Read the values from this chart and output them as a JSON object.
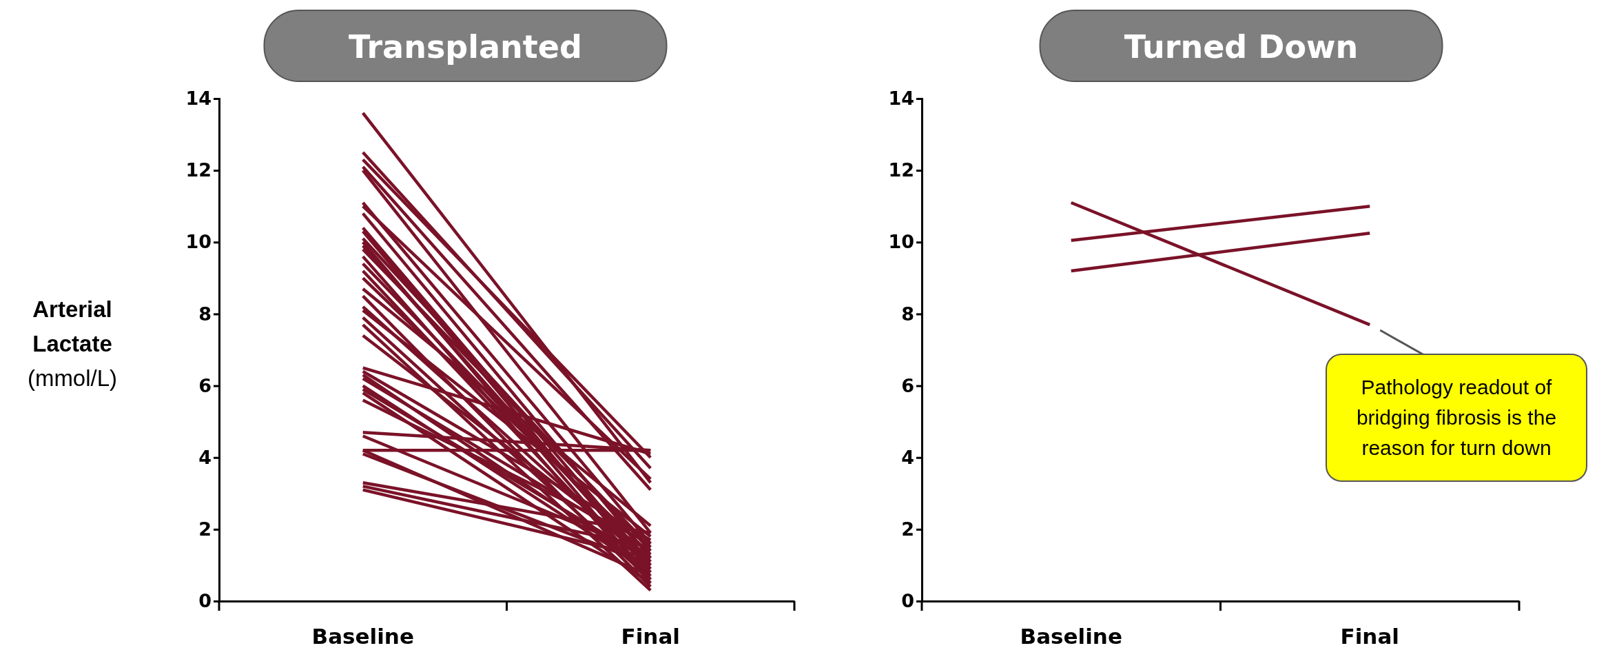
{
  "chart_data": [
    {
      "type": "line",
      "title": "Transplanted",
      "ylabel": "Arterial Lactate (mmol/L)",
      "categories": [
        "Baseline",
        "Final"
      ],
      "ylim": [
        0,
        14
      ],
      "yticks": [
        0,
        2,
        4,
        6,
        8,
        10,
        12,
        14
      ],
      "grid": false,
      "marker": "none",
      "series": [
        {
          "color": "#7a1228",
          "values": [
            13.6,
            3.3
          ]
        },
        {
          "color": "#7a1228",
          "values": [
            12.5,
            3.7
          ]
        },
        {
          "color": "#7a1228",
          "values": [
            12.3,
            4.0
          ]
        },
        {
          "color": "#7a1228",
          "values": [
            12.1,
            3.1
          ]
        },
        {
          "color": "#7a1228",
          "values": [
            12.0,
            1.9
          ]
        },
        {
          "color": "#7a1228",
          "values": [
            11.1,
            1.6
          ]
        },
        {
          "color": "#7a1228",
          "values": [
            11.0,
            3.4
          ]
        },
        {
          "color": "#7a1228",
          "values": [
            10.8,
            1.2
          ]
        },
        {
          "color": "#7a1228",
          "values": [
            10.4,
            1.0
          ]
        },
        {
          "color": "#7a1228",
          "values": [
            10.3,
            0.8
          ]
        },
        {
          "color": "#7a1228",
          "values": [
            10.1,
            1.4
          ]
        },
        {
          "color": "#7a1228",
          "values": [
            10.0,
            0.6
          ]
        },
        {
          "color": "#7a1228",
          "values": [
            9.9,
            0.9
          ]
        },
        {
          "color": "#7a1228",
          "values": [
            9.8,
            1.5
          ]
        },
        {
          "color": "#7a1228",
          "values": [
            9.6,
            0.5
          ]
        },
        {
          "color": "#7a1228",
          "values": [
            9.4,
            1.1
          ]
        },
        {
          "color": "#7a1228",
          "values": [
            9.2,
            0.7
          ]
        },
        {
          "color": "#7a1228",
          "values": [
            9.0,
            1.3
          ]
        },
        {
          "color": "#7a1228",
          "values": [
            8.7,
            2.1
          ]
        },
        {
          "color": "#7a1228",
          "values": [
            8.5,
            0.4
          ]
        },
        {
          "color": "#7a1228",
          "values": [
            8.2,
            1.0
          ]
        },
        {
          "color": "#7a1228",
          "values": [
            8.1,
            1.8
          ]
        },
        {
          "color": "#7a1228",
          "values": [
            7.9,
            0.6
          ]
        },
        {
          "color": "#7a1228",
          "values": [
            7.7,
            0.3
          ]
        },
        {
          "color": "#7a1228",
          "values": [
            7.4,
            1.2
          ]
        },
        {
          "color": "#7a1228",
          "values": [
            6.5,
            4.1
          ]
        },
        {
          "color": "#7a1228",
          "values": [
            6.4,
            1.7
          ]
        },
        {
          "color": "#7a1228",
          "values": [
            6.3,
            0.9
          ]
        },
        {
          "color": "#7a1228",
          "values": [
            6.2,
            1.4
          ]
        },
        {
          "color": "#7a1228",
          "values": [
            6.0,
            0.8
          ]
        },
        {
          "color": "#7a1228",
          "values": [
            5.9,
            1.1
          ]
        },
        {
          "color": "#7a1228",
          "values": [
            5.8,
            0.5
          ]
        },
        {
          "color": "#7a1228",
          "values": [
            5.6,
            1.6
          ]
        },
        {
          "color": "#7a1228",
          "values": [
            4.7,
            4.2
          ]
        },
        {
          "color": "#7a1228",
          "values": [
            4.6,
            1.3
          ]
        },
        {
          "color": "#7a1228",
          "values": [
            4.2,
            4.2
          ]
        },
        {
          "color": "#7a1228",
          "values": [
            4.2,
            0.7
          ]
        },
        {
          "color": "#7a1228",
          "values": [
            4.1,
            1.0
          ]
        },
        {
          "color": "#7a1228",
          "values": [
            3.3,
            1.9
          ]
        },
        {
          "color": "#7a1228",
          "values": [
            3.2,
            1.5
          ]
        },
        {
          "color": "#7a1228",
          "values": [
            3.1,
            1.2
          ]
        }
      ]
    },
    {
      "type": "line",
      "title": "Turned Down",
      "categories": [
        "Baseline",
        "Final"
      ],
      "ylim": [
        0,
        14
      ],
      "yticks": [
        0,
        2,
        4,
        6,
        8,
        10,
        12,
        14
      ],
      "grid": false,
      "marker": "none",
      "annotations": [
        {
          "text": "Pathology readout of bridging fibrosis is the reason for turn down",
          "x": "Final",
          "y": 7.7
        }
      ],
      "series": [
        {
          "color": "#7a1228",
          "values": [
            11.1,
            7.7
          ]
        },
        {
          "color": "#7a1228",
          "values": [
            10.05,
            11.0
          ]
        },
        {
          "color": "#7a1228",
          "values": [
            9.2,
            10.25
          ]
        }
      ]
    }
  ]
}
